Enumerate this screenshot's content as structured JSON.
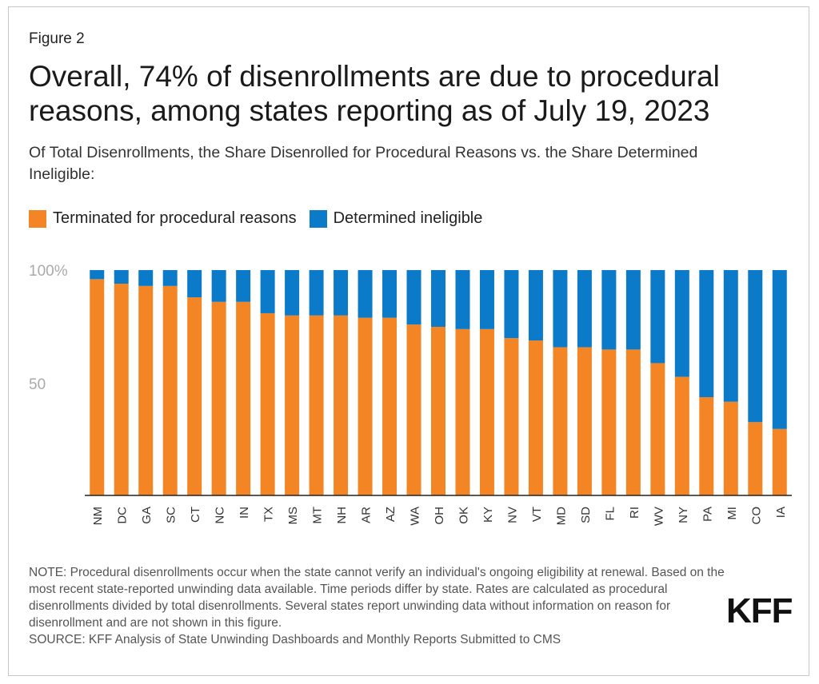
{
  "figure_label": "Figure 2",
  "title": "Overall, 74% of disenrollments are due to procedural reasons, among states reporting as of July 19, 2023",
  "subtitle": "Of Total Disenrollments, the Share Disenrolled for Procedural Reasons vs. the Share Determined Ineligible:",
  "note": "NOTE: Procedural disenrollments occur when the state cannot verify an individual's ongoing eligibility at renewal. Based on the most recent state-reported unwinding data available. Time periods differ by state. Rates are calculated as procedural disenrollments divided by total disenrollments. Several states report unwinding data without information on reason for disenrollment and are not shown in this figure.",
  "source": "SOURCE: KFF Analysis of State Unwinding Dashboards and Monthly Reports Submitted to CMS",
  "logo": "KFF",
  "colors": {
    "procedural": "#f38525",
    "ineligible": "#0b7ac9",
    "axis": "#222222",
    "tick_label": "#aaaaaa"
  },
  "chart_data": {
    "type": "bar",
    "stacked": true,
    "categories": [
      "NM",
      "DC",
      "GA",
      "SC",
      "CT",
      "NC",
      "IN",
      "TX",
      "MS",
      "MT",
      "NH",
      "AR",
      "AZ",
      "WA",
      "OH",
      "OK",
      "KY",
      "NV",
      "VT",
      "MD",
      "SD",
      "FL",
      "RI",
      "WV",
      "NY",
      "PA",
      "MI",
      "CO",
      "IA"
    ],
    "series": [
      {
        "name": "Terminated for procedural reasons",
        "color": "#f38525",
        "values": [
          96,
          94,
          93,
          93,
          88,
          86,
          86,
          81,
          80,
          80,
          80,
          79,
          79,
          76,
          75,
          74,
          74,
          70,
          69,
          66,
          66,
          65,
          65,
          59,
          53,
          44,
          42,
          33,
          30
        ]
      },
      {
        "name": "Determined ineligible",
        "color": "#0b7ac9",
        "values": [
          4,
          6,
          7,
          7,
          12,
          14,
          14,
          19,
          20,
          20,
          20,
          21,
          21,
          24,
          25,
          26,
          26,
          30,
          31,
          34,
          34,
          35,
          35,
          41,
          47,
          56,
          58,
          67,
          70
        ]
      }
    ],
    "ylim": [
      0,
      100
    ],
    "yticks": [
      {
        "value": 50,
        "label": "50"
      },
      {
        "value": 100,
        "label": "100%"
      }
    ],
    "legend_position": "top-left",
    "grid": false
  }
}
